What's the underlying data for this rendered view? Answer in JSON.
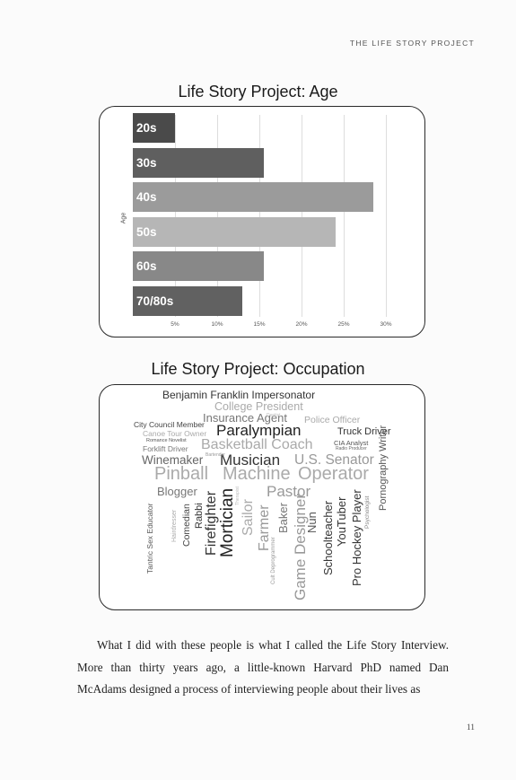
{
  "running_head": "THE LIFE STORY PROJECT",
  "charts": {
    "age_title": "Life Story Project: Age",
    "occupation_title": "Life Story Project: Occupation"
  },
  "chart_data": [
    {
      "type": "bar",
      "orientation": "horizontal",
      "title": "Life Story Project: Age",
      "ylabel": "Age",
      "xlabel": "",
      "categories": [
        "20s",
        "30s",
        "40s",
        "50s",
        "60s",
        "70/80s"
      ],
      "values": [
        5,
        15.5,
        28.5,
        24,
        15.5,
        13
      ],
      "colors": [
        "#4a4a4a",
        "#5f5f5f",
        "#9b9b9b",
        "#b6b6b6",
        "#888888",
        "#616161"
      ],
      "xticks": [
        "5%",
        "10%",
        "15%",
        "20%",
        "25%",
        "30%"
      ],
      "xlim": [
        0,
        30
      ],
      "grid": true
    },
    {
      "type": "word_cloud",
      "title": "Life Story Project: Occupation",
      "words": [
        {
          "text": "Benjamin Franklin Impersonator",
          "color": "#333",
          "size": 12
        },
        {
          "text": "College President",
          "color": "#aaa",
          "size": 12.5
        },
        {
          "text": "Insurance Agent",
          "color": "#777",
          "size": 13
        },
        {
          "text": "Police Officer",
          "color": "#aaa",
          "size": 10.5
        },
        {
          "text": "City Council Member",
          "color": "#444",
          "size": 8.5
        },
        {
          "text": "Canoe Tour Owner",
          "color": "#aaa",
          "size": 8.5
        },
        {
          "text": "Romance Novelist",
          "color": "#555",
          "size": 5.5
        },
        {
          "text": "Forklift Driver",
          "color": "#777",
          "size": 8.5
        },
        {
          "text": "Paralympian",
          "color": "#222",
          "size": 17
        },
        {
          "text": "Truck Driver",
          "color": "#333",
          "size": 11
        },
        {
          "text": "Basketball Coach",
          "color": "#aaa",
          "size": 16
        },
        {
          "text": "CIA Analyst",
          "color": "#555",
          "size": 7.5
        },
        {
          "text": "Radio Producer",
          "color": "#666",
          "size": 5
        },
        {
          "text": "Winemaker",
          "color": "#666",
          "size": 13.5
        },
        {
          "text": "Musician",
          "color": "#333",
          "size": 17
        },
        {
          "text": "U.S. Senator",
          "color": "#999",
          "size": 15.5
        },
        {
          "text": "Pinball",
          "color": "#aaa",
          "size": 20
        },
        {
          "text": "Machine",
          "color": "#aaa",
          "size": 20
        },
        {
          "text": "Operator",
          "color": "#aaa",
          "size": 20
        },
        {
          "text": "Blogger",
          "color": "#777",
          "size": 13
        },
        {
          "text": "Pastor",
          "color": "#999",
          "size": 17
        },
        {
          "text": "Pornography Writer",
          "color": "#555",
          "size": 11
        },
        {
          "text": "Tantric Sex Educator",
          "color": "#555",
          "size": 8.5
        },
        {
          "text": "Hairdresser",
          "color": "#aaa",
          "size": 7
        },
        {
          "text": "Comedian",
          "color": "#444",
          "size": 10.5
        },
        {
          "text": "Rabbi",
          "color": "#333",
          "size": 11
        },
        {
          "text": "Firefighter",
          "color": "#333",
          "size": 16
        },
        {
          "text": "Mortician",
          "color": "#222",
          "size": 19
        },
        {
          "text": "Sailor",
          "color": "#aaa",
          "size": 16
        },
        {
          "text": "Farmer",
          "color": "#999",
          "size": 16
        },
        {
          "text": "Cult Deprogrammer",
          "color": "#999",
          "size": 6
        },
        {
          "text": "Baker",
          "color": "#777",
          "size": 13
        },
        {
          "text": "Game Designer",
          "color": "#999",
          "size": 17
        },
        {
          "text": "Nun",
          "color": "#555",
          "size": 13
        },
        {
          "text": "Schoolteacher",
          "color": "#333",
          "size": 13
        },
        {
          "text": "YouTuber",
          "color": "#333",
          "size": 13
        },
        {
          "text": "Pro Hockey Player",
          "color": "#333",
          "size": 13
        },
        {
          "text": "Psychologist",
          "color": "#888",
          "size": 6.5
        },
        {
          "text": "Dentist",
          "color": "#bbb",
          "size": 5
        },
        {
          "text": "Bartender",
          "color": "#999",
          "size": 5
        },
        {
          "text": "Therapist",
          "color": "#bbb",
          "size": 5
        }
      ]
    }
  ],
  "body": {
    "text": "What I did with these people is what I called the Life Story Interview. More than thirty years ago, a little-known Harvard PhD named Dan McAdams designed a process of interviewing people about their lives as"
  },
  "page_number": "11"
}
